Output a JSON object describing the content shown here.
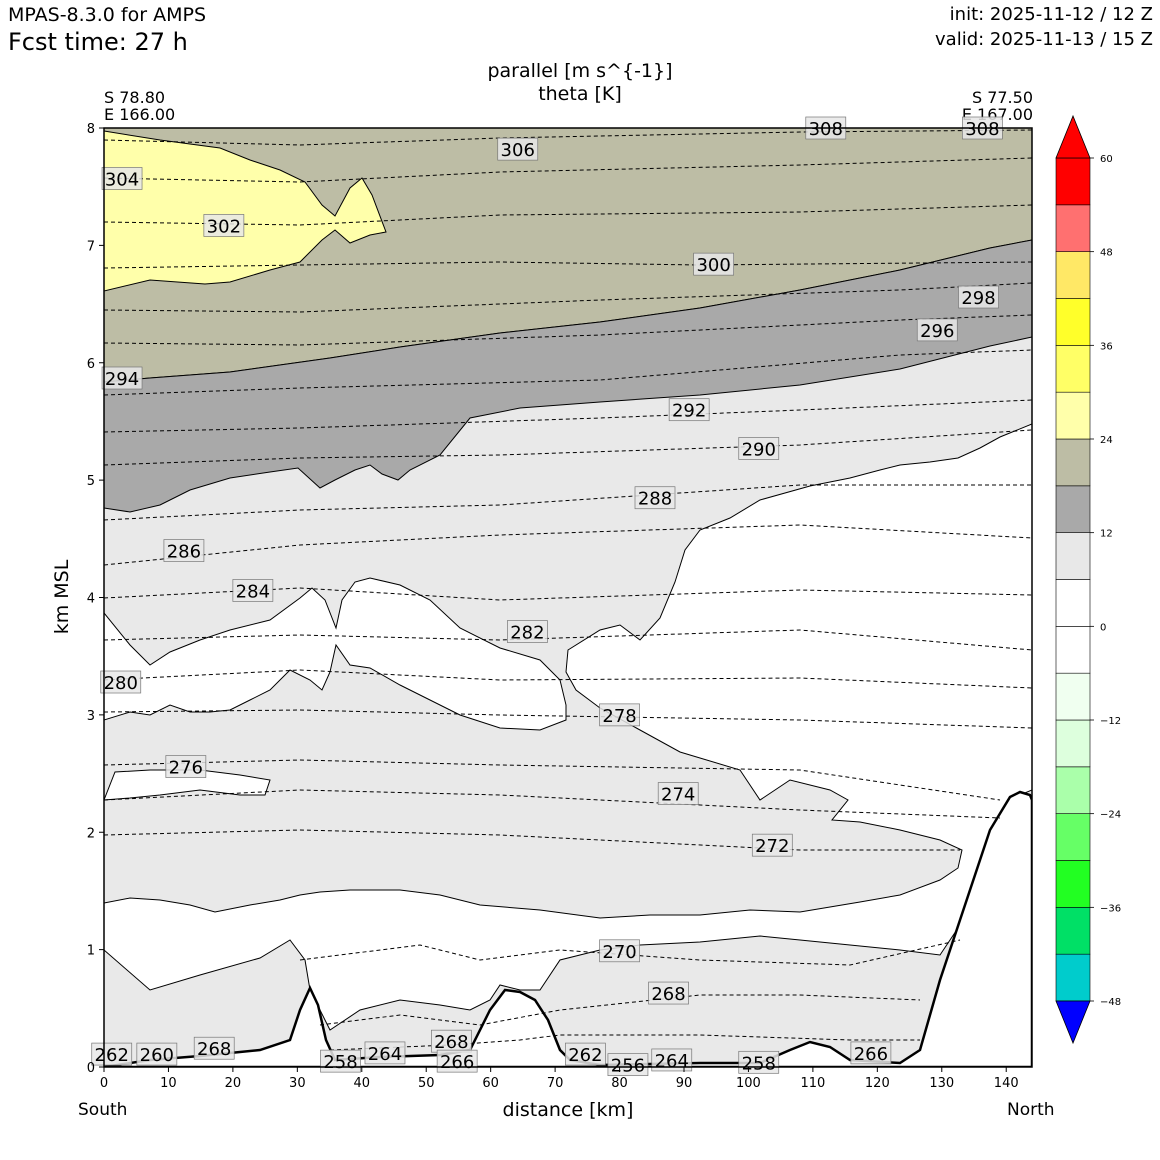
{
  "header": {
    "model": "MPAS-8.3.0 for AMPS",
    "fcst_time": "Fcst time:   27 h",
    "init": "init: 2025-11-12 / 12 Z",
    "valid": "valid: 2025-11-13 / 15 Z"
  },
  "chart_data": {
    "type": "cross-section",
    "title_lines": [
      "parallel [m s^{-1}]",
      "theta [K]"
    ],
    "xlabel": "distance [km]",
    "ylabel": "km MSL",
    "xlim": [
      0,
      144
    ],
    "ylim": [
      0,
      8
    ],
    "x_ticks": [
      0,
      10,
      20,
      30,
      40,
      50,
      60,
      70,
      80,
      90,
      100,
      110,
      120,
      130,
      140
    ],
    "y_ticks": [
      0,
      1,
      2,
      3,
      4,
      5,
      6,
      7,
      8
    ],
    "start_point": [
      "S 78.80",
      "E 166.00"
    ],
    "end_point": [
      "S 77.50",
      "E 167.00"
    ],
    "start_label": "South",
    "end_label": "North",
    "colorbar": {
      "levels": [
        -54,
        -48,
        -42,
        -36,
        -30,
        -24,
        -18,
        -12,
        -6,
        0,
        6,
        12,
        18,
        24,
        30,
        36,
        42,
        48,
        54,
        60
      ],
      "tick_labels": [
        "60",
        "48",
        "36",
        "24",
        "12",
        "0",
        "−12",
        "−24",
        "−36",
        "−48"
      ],
      "tick_values": [
        60,
        48,
        36,
        24,
        12,
        0,
        -12,
        -24,
        -36,
        -48
      ],
      "colors": [
        "#0000ff",
        "#00cccc",
        "#00e066",
        "#22ff22",
        "#66ff66",
        "#aaffaa",
        "#ddffdd",
        "#f0fff0",
        "#ffffff",
        "#ffffff",
        "#e8e8e8",
        "#a9a9a9",
        "#bdbda5",
        "#ffffaa",
        "#ffff66",
        "#ffff2a",
        "#ffe866",
        "#ff7070",
        "#ff0000"
      ]
    },
    "theta_labels": [
      {
        "text": "306",
        "x": 64.2,
        "y": 7.82
      },
      {
        "text": "308",
        "x": 112.0,
        "y": 8.0
      },
      {
        "text": "308",
        "x": 136.3,
        "y": 8.0
      },
      {
        "text": "304",
        "x": 2.8,
        "y": 7.57
      },
      {
        "text": "302",
        "x": 18.6,
        "y": 7.17
      },
      {
        "text": "300",
        "x": 94.6,
        "y": 6.84
      },
      {
        "text": "298",
        "x": 135.7,
        "y": 6.56
      },
      {
        "text": "296",
        "x": 129.3,
        "y": 6.28
      },
      {
        "text": "294",
        "x": 2.8,
        "y": 5.87
      },
      {
        "text": "292",
        "x": 90.8,
        "y": 5.6
      },
      {
        "text": "290",
        "x": 101.6,
        "y": 5.27
      },
      {
        "text": "288",
        "x": 85.5,
        "y": 4.85
      },
      {
        "text": "286",
        "x": 12.4,
        "y": 4.4
      },
      {
        "text": "284",
        "x": 23.1,
        "y": 4.06
      },
      {
        "text": "282",
        "x": 65.7,
        "y": 3.71
      },
      {
        "text": "280",
        "x": 2.6,
        "y": 3.28
      },
      {
        "text": "278",
        "x": 80.0,
        "y": 3.0
      },
      {
        "text": "276",
        "x": 12.7,
        "y": 2.56
      },
      {
        "text": "274",
        "x": 89.1,
        "y": 2.33
      },
      {
        "text": "272",
        "x": 103.7,
        "y": 1.89
      },
      {
        "text": "270",
        "x": 80.0,
        "y": 0.99
      },
      {
        "text": "268",
        "x": 87.6,
        "y": 0.63
      },
      {
        "text": "266",
        "x": 119.0,
        "y": 0.12
      },
      {
        "text": "268",
        "x": 17.1,
        "y": 0.16
      },
      {
        "text": "264",
        "x": 43.6,
        "y": 0.12
      },
      {
        "text": "262",
        "x": 74.7,
        "y": 0.11
      },
      {
        "text": "264",
        "x": 88.1,
        "y": 0.06
      },
      {
        "text": "260",
        "x": 8.2,
        "y": 0.11
      },
      {
        "text": "262",
        "x": 1.2,
        "y": 0.11
      },
      {
        "text": "258",
        "x": 36.7,
        "y": 0.05
      },
      {
        "text": "256",
        "x": 81.3,
        "y": 0.02
      },
      {
        "text": "258",
        "x": 101.6,
        "y": 0.04
      },
      {
        "text": "268",
        "x": 53.9,
        "y": 0.22
      },
      {
        "text": "266",
        "x": 54.8,
        "y": 0.05
      }
    ]
  }
}
